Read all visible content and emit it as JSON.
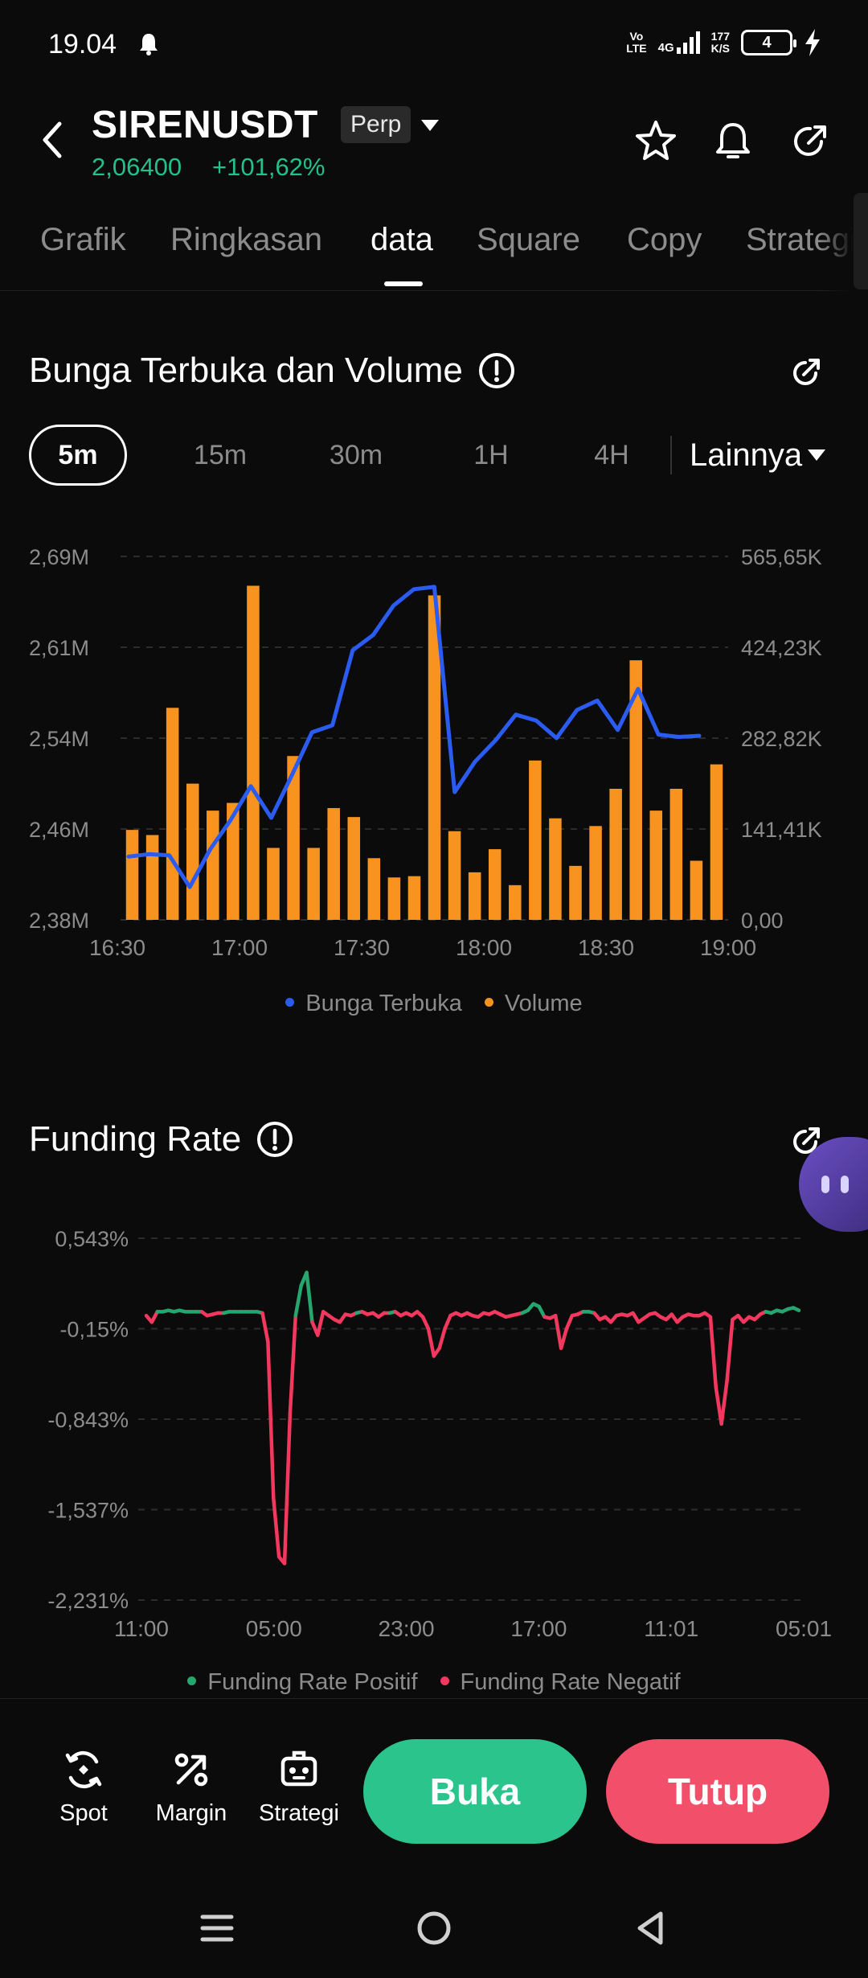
{
  "status_bar": {
    "time": "19.04",
    "volte": [
      "Vo",
      "LTE"
    ],
    "network": "4G",
    "speed": [
      "177",
      "K/S"
    ],
    "battery": "4"
  },
  "header": {
    "symbol": "SIRENUSDT",
    "badge": "Perp",
    "price": "2,06400",
    "change": "+101,62%"
  },
  "tabs": [
    "Grafik",
    "Ringkasan",
    "data",
    "Square",
    "Copy",
    "Strategi"
  ],
  "active_tab": "data",
  "oi_section": {
    "title": "Bunga Terbuka dan Volume",
    "intervals": [
      "5m",
      "15m",
      "30m",
      "1H",
      "4H"
    ],
    "active_interval": "5m",
    "more_label": "Lainnya"
  },
  "chart_data": [
    {
      "type": "bar",
      "title": "Bunga Terbuka dan Volume",
      "x_labels": [
        "16:30",
        "17:00",
        "17:30",
        "18:00",
        "18:30",
        "19:00"
      ],
      "y_left_labels": [
        "2,69M",
        "2,61M",
        "2,54M",
        "2,46M",
        "2,38M"
      ],
      "y_right_labels": [
        "565,65K",
        "424,23K",
        "282,82K",
        "141,41K",
        "0,00"
      ],
      "y_left_range": [
        2380000,
        2690000
      ],
      "y_right_range": [
        0,
        565650
      ],
      "grid": "dashed horizontal",
      "legend_position": "bottom",
      "series": [
        {
          "name": "Volume",
          "axis": "right",
          "mark": "bar",
          "color": "#f7931e",
          "values": [
            140000,
            132000,
            330000,
            212000,
            170000,
            182000,
            520000,
            112000,
            255000,
            112000,
            174000,
            160000,
            96000,
            66000,
            68000,
            505000,
            138000,
            74000,
            110000,
            54000,
            248000,
            158000,
            84000,
            146000,
            204000,
            404000,
            170000,
            204000,
            92000,
            242000
          ]
        },
        {
          "name": "Bunga Terbuka",
          "axis": "left",
          "mark": "line",
          "color": "#2a5cf2",
          "values": [
            2434000,
            2436000,
            2435000,
            2408000,
            2440000,
            2465000,
            2494000,
            2467000,
            2503000,
            2540000,
            2546000,
            2610000,
            2623000,
            2648000,
            2662000,
            2664000,
            2489000,
            2515000,
            2533000,
            2555000,
            2550000,
            2535000,
            2559000,
            2567000,
            2542000,
            2577000,
            2538000,
            2536000,
            2537000
          ]
        }
      ]
    },
    {
      "type": "line",
      "title": "Funding Rate",
      "x_labels": [
        "11:00",
        "05:00",
        "23:00",
        "17:00",
        "11:01",
        "05:01"
      ],
      "y_labels": [
        "0,543%",
        "-0,15%",
        "-0,843%",
        "-1,537%",
        "-2,231%"
      ],
      "ylim": [
        -2.231,
        0.543
      ],
      "grid": "dashed horizontal",
      "legend_position": "bottom",
      "series": [
        {
          "name": "Funding Rate Positif",
          "color": "#26a66f"
        },
        {
          "name": "Funding Rate Negatif",
          "color": "#f2385e"
        }
      ],
      "values": [
        -0.05,
        -0.1,
        -0.02,
        -0.02,
        -0.01,
        -0.02,
        -0.01,
        -0.02,
        -0.02,
        -0.02,
        -0.02,
        -0.05,
        -0.04,
        -0.03,
        -0.03,
        -0.02,
        -0.02,
        -0.02,
        -0.02,
        -0.02,
        -0.02,
        -0.03,
        -0.25,
        -1.45,
        -1.9,
        -1.95,
        -0.8,
        -0.05,
        0.18,
        0.28,
        -0.1,
        -0.2,
        -0.02,
        -0.05,
        -0.08,
        -0.1,
        -0.04,
        -0.05,
        -0.03,
        -0.02,
        -0.04,
        -0.03,
        -0.06,
        -0.03,
        -0.03,
        -0.02,
        -0.05,
        -0.03,
        -0.05,
        -0.02,
        -0.06,
        -0.15,
        -0.36,
        -0.3,
        -0.15,
        -0.05,
        -0.03,
        -0.05,
        -0.03,
        -0.05,
        -0.06,
        -0.03,
        -0.04,
        -0.02,
        -0.04,
        -0.06,
        -0.05,
        -0.04,
        -0.03,
        -0.01,
        0.04,
        0.02,
        -0.06,
        -0.07,
        -0.05,
        -0.3,
        -0.15,
        -0.05,
        -0.04,
        -0.02,
        -0.02,
        -0.03,
        -0.08,
        -0.06,
        -0.1,
        -0.05,
        -0.04,
        -0.05,
        -0.03,
        -0.1,
        -0.07,
        -0.04,
        -0.03,
        -0.06,
        -0.08,
        -0.04,
        -0.1,
        -0.06,
        -0.04,
        -0.05,
        -0.05,
        -0.03,
        -0.06,
        -0.6,
        -0.88,
        -0.55,
        -0.08,
        -0.05,
        -0.1,
        -0.06,
        -0.08,
        -0.04,
        -0.02,
        -0.03,
        -0.01,
        -0.02,
        0.0,
        0.01,
        -0.01
      ]
    }
  ],
  "oi_legend": [
    "Bunga Terbuka",
    "Volume"
  ],
  "fr_section": {
    "title": "Funding Rate"
  },
  "fr_legend": [
    "Funding Rate Positif",
    "Funding Rate Negatif"
  ],
  "bottom_bar": {
    "spot": "Spot",
    "margin": "Margin",
    "strategy": "Strategi",
    "open": "Buka",
    "close": "Tutup"
  }
}
